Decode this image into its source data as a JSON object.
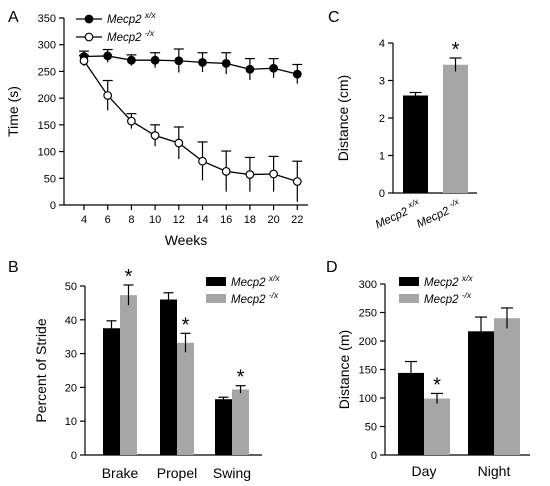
{
  "chart_data": [
    {
      "type": "line",
      "panel": "A",
      "xlabel": "Weeks",
      "ylabel": "Time (s)",
      "x": [
        4,
        6,
        8,
        10,
        12,
        14,
        16,
        18,
        20,
        22
      ],
      "xticks": [
        "4",
        "6",
        "8",
        "10",
        "12",
        "14",
        "16",
        "18",
        "20",
        "22"
      ],
      "ylim": [
        0,
        350
      ],
      "yticks": [
        "0",
        "50",
        "100",
        "150",
        "200",
        "250",
        "300",
        "350"
      ],
      "legend": "top-left",
      "series": [
        {
          "name": "Mecp2",
          "name_sup": "x/x",
          "marker": "filled-circle",
          "values": [
            278,
            279,
            271,
            271,
            270,
            267,
            265,
            254,
            256,
            245
          ],
          "errors": [
            10,
            12,
            10,
            14,
            22,
            18,
            20,
            20,
            18,
            18
          ]
        },
        {
          "name": "Mecp2",
          "name_sup": "-/x",
          "marker": "open-circle",
          "values": [
            270,
            205,
            157,
            130,
            116,
            82,
            63,
            57,
            58,
            44
          ],
          "errors": [
            10,
            28,
            14,
            20,
            30,
            36,
            38,
            32,
            33,
            38
          ]
        }
      ]
    },
    {
      "type": "bar",
      "panel": "B",
      "categories": [
        "Brake",
        "Propel",
        "Swing"
      ],
      "ylabel": "Percent of Stride",
      "ylim": [
        0,
        50
      ],
      "yticks": [
        "0",
        "10",
        "20",
        "30",
        "40",
        "50"
      ],
      "legend": "top-right",
      "series": [
        {
          "name": "Mecp2",
          "name_sup": "x/x",
          "color": "#000000",
          "values": [
            37.5,
            46,
            16.5
          ],
          "errors": [
            2.2,
            2.0,
            0.6
          ]
        },
        {
          "name": "Mecp2",
          "name_sup": "-/x",
          "color": "#a6a6a6",
          "values": [
            47.3,
            33.2,
            19.4
          ],
          "errors": [
            3.0,
            2.8,
            1.1
          ]
        }
      ],
      "significance": [
        "*",
        "*",
        "*"
      ]
    },
    {
      "type": "bar",
      "panel": "C",
      "categories": [
        "Mecp2",
        "Mecp2"
      ],
      "category_sups": [
        "x/x",
        "-/x"
      ],
      "ylabel": "Distance (cm)",
      "ylim": [
        0,
        4
      ],
      "yticks": [
        "0",
        "1",
        "2",
        "3",
        "4"
      ],
      "colors": [
        "#000000",
        "#a6a6a6"
      ],
      "values": [
        2.6,
        3.42
      ],
      "errors": [
        0.08,
        0.18
      ],
      "significance": [
        "",
        "*"
      ]
    },
    {
      "type": "bar",
      "panel": "D",
      "categories": [
        "Day",
        "Night"
      ],
      "ylabel": "Distance (m)",
      "ylim": [
        0,
        300
      ],
      "yticks": [
        "0",
        "50",
        "100",
        "150",
        "200",
        "250",
        "300"
      ],
      "legend": "top-left",
      "series": [
        {
          "name": "Mecp2",
          "name_sup": "x/x",
          "color": "#000000",
          "values": [
            144,
            217
          ],
          "errors": [
            20,
            25
          ]
        },
        {
          "name": "Mecp2",
          "name_sup": "-/x",
          "color": "#a6a6a6",
          "values": [
            99,
            240
          ],
          "errors": [
            9,
            18
          ]
        }
      ],
      "significance": [
        "*",
        ""
      ]
    }
  ]
}
